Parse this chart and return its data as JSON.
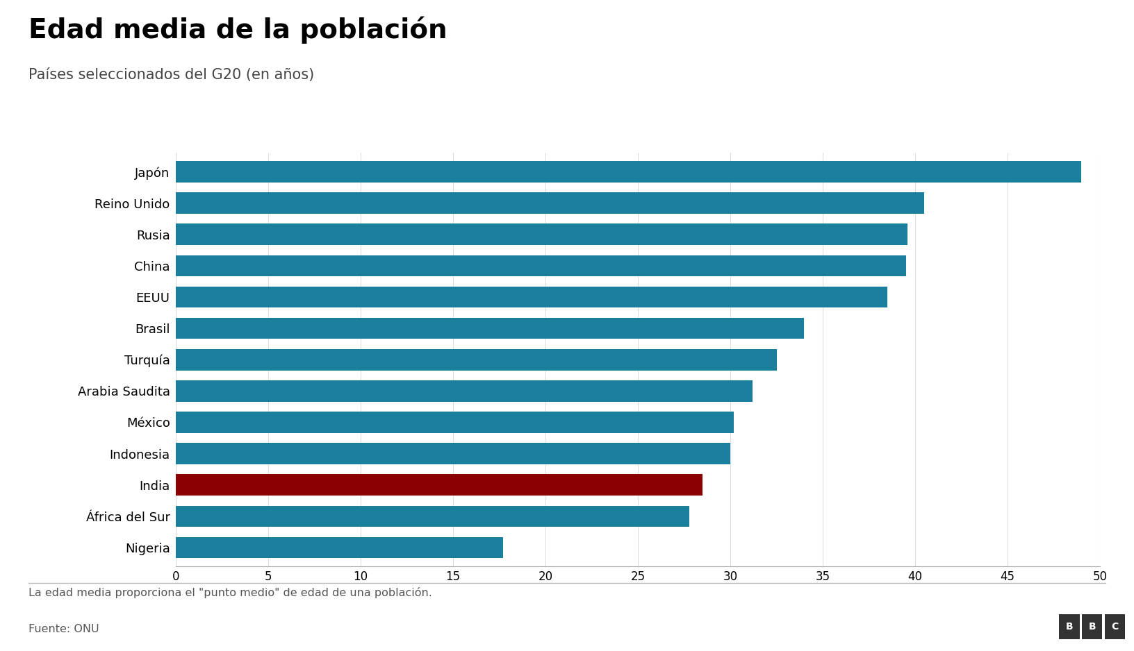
{
  "title": "Edad media de la población",
  "subtitle": "Países seleccionados del G20 (en años)",
  "countries": [
    "Japón",
    "Reino Unido",
    "Rusia",
    "China",
    "EEUU",
    "Brasil",
    "Turquía",
    "Arabia Saudita",
    "México",
    "Indonesia",
    "India",
    "África del Sur",
    "Nigeria"
  ],
  "values": [
    49.0,
    40.5,
    39.6,
    39.5,
    38.5,
    34.0,
    32.5,
    31.2,
    30.2,
    30.0,
    28.5,
    27.8,
    17.7
  ],
  "bar_color_default": "#1a7f9c",
  "bar_color_highlight": "#8b0000",
  "highlight_country": "India",
  "xlim": [
    0,
    50
  ],
  "xticks": [
    0,
    5,
    10,
    15,
    20,
    25,
    30,
    35,
    40,
    45,
    50
  ],
  "footnote": "La edad media proporciona el \"punto medio\" de edad de una población.",
  "source": "Fuente: ONU",
  "background_color": "#ffffff",
  "title_fontsize": 28,
  "subtitle_fontsize": 15,
  "label_fontsize": 13,
  "tick_fontsize": 12,
  "footnote_fontsize": 11.5,
  "source_fontsize": 11.5
}
